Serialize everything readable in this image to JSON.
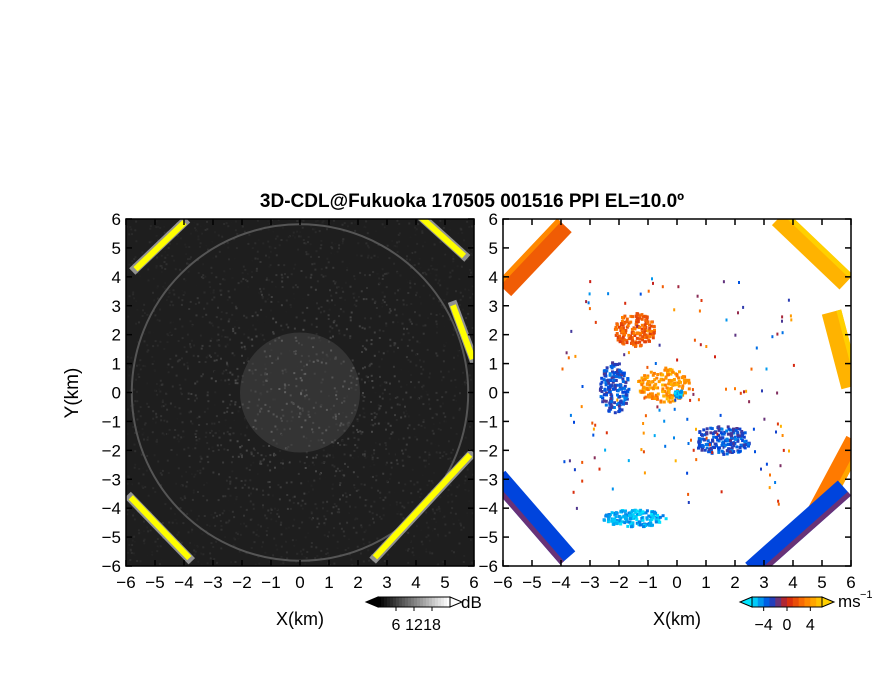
{
  "chart_data": [
    {
      "type": "heatmap",
      "title": "3D-CDL@Fukuoka 170505 001516 PPI EL=10.0º",
      "xlabel": "X(km)",
      "ylabel": "Y(km)",
      "xlim": [
        -6,
        6
      ],
      "ylim": [
        -6,
        6
      ],
      "xticks": [
        "−6",
        "−5",
        "−4",
        "−3",
        "−2",
        "−1",
        "0",
        "1",
        "2",
        "3",
        "4",
        "5",
        "6"
      ],
      "yticks": [
        "6",
        "5",
        "4",
        "3",
        "2",
        "1",
        "0",
        "−1",
        "−2",
        "−3",
        "−4",
        "−5",
        "−6"
      ],
      "colorbar": {
        "unit": "dB",
        "ticks": [
          "6",
          "12",
          "18"
        ],
        "tick_values": [
          6,
          12,
          18
        ],
        "range": [
          0,
          24
        ],
        "colormap": [
          "#000000",
          "#ffffff"
        ]
      },
      "highlight_color": "#ffff00",
      "background": "#1e1e1e",
      "features": [
        {
          "label": "clutter arc NW",
          "x": [
            -5.8,
            -3.9
          ],
          "y": [
            4.2,
            6.0
          ],
          "value": 24
        },
        {
          "label": "clutter arc NE",
          "x": [
            3.8,
            6.0
          ],
          "y": [
            5.0,
            5.9
          ],
          "value": 24
        },
        {
          "label": "clutter arc E",
          "x": [
            5.4,
            5.9
          ],
          "y": [
            1.0,
            3.2
          ],
          "value": 24
        },
        {
          "label": "clutter arc SE",
          "x": [
            2.6,
            5.9
          ],
          "y": [
            -5.9,
            -2.0
          ],
          "value": 24
        },
        {
          "label": "clutter arc SW",
          "x": [
            -5.9,
            -3.8
          ],
          "y": [
            -5.9,
            -3.5
          ],
          "value": 24
        }
      ]
    },
    {
      "type": "heatmap",
      "title": "",
      "xlabel": "X(km)",
      "ylabel": "",
      "xlim": [
        -6,
        6
      ],
      "ylim": [
        -6,
        6
      ],
      "xticks": [
        "−6",
        "−5",
        "−4",
        "−3",
        "−2",
        "−1",
        "0",
        "1",
        "2",
        "3",
        "4",
        "5",
        "6"
      ],
      "yticks": [
        "6",
        "5",
        "4",
        "3",
        "2",
        "1",
        "0",
        "−1",
        "−2",
        "−3",
        "−4",
        "−5",
        "−6"
      ],
      "colorbar": {
        "unit": "ms",
        "unit_exponent": "−1",
        "ticks": [
          "−4",
          "0",
          "4"
        ],
        "tick_values": [
          -4,
          0,
          4
        ],
        "range": [
          -6,
          6
        ],
        "colormap": [
          "#00e5ff",
          "#0044dd",
          "#d22010",
          "#ff7a00",
          "#ffd000"
        ]
      },
      "clusters": [
        {
          "label": "near-radar positive",
          "cx": -0.5,
          "cy": 0.3,
          "rx": 0.9,
          "ry": 0.6,
          "value": 4
        },
        {
          "label": "north-west positive",
          "cx": -1.5,
          "cy": 2.2,
          "rx": 0.7,
          "ry": 0.6,
          "value": 2
        },
        {
          "label": "west negative",
          "cx": -2.2,
          "cy": 0.2,
          "rx": 0.5,
          "ry": 0.9,
          "value": -3
        },
        {
          "label": "east negative",
          "cx": 1.5,
          "cy": -1.6,
          "rx": 1.0,
          "ry": 0.5,
          "value": -3
        },
        {
          "label": "south cyan",
          "cx": -1.5,
          "cy": -4.3,
          "rx": 1.1,
          "ry": 0.3,
          "value": -5
        },
        {
          "label": "radar center",
          "cx": 0.0,
          "cy": 0.0,
          "rx": 0.15,
          "ry": 0.15,
          "value": -5
        }
      ],
      "rim": [
        {
          "label": "NW rim",
          "x": [
            -6.0,
            -3.9
          ],
          "y": [
            3.6,
            5.8
          ],
          "value": 2
        },
        {
          "label": "NE rim",
          "x": [
            3.4,
            6.0
          ],
          "y": [
            4.0,
            5.9
          ],
          "value": 5
        },
        {
          "label": "E rim",
          "x": [
            5.4,
            6.0
          ],
          "y": [
            0.2,
            2.8
          ],
          "value": 5
        },
        {
          "label": "SE rim positive",
          "x": [
            5.0,
            6.0
          ],
          "y": [
            -4.3,
            -1.6
          ],
          "value": 3
        },
        {
          "label": "SE rim negative",
          "x": [
            2.4,
            6.0
          ],
          "y": [
            -5.9,
            -3.6
          ],
          "value": -3
        },
        {
          "label": "SW rim",
          "x": [
            -6.0,
            -4.0
          ],
          "y": [
            -5.9,
            -2.8
          ],
          "value": -3
        }
      ]
    }
  ]
}
